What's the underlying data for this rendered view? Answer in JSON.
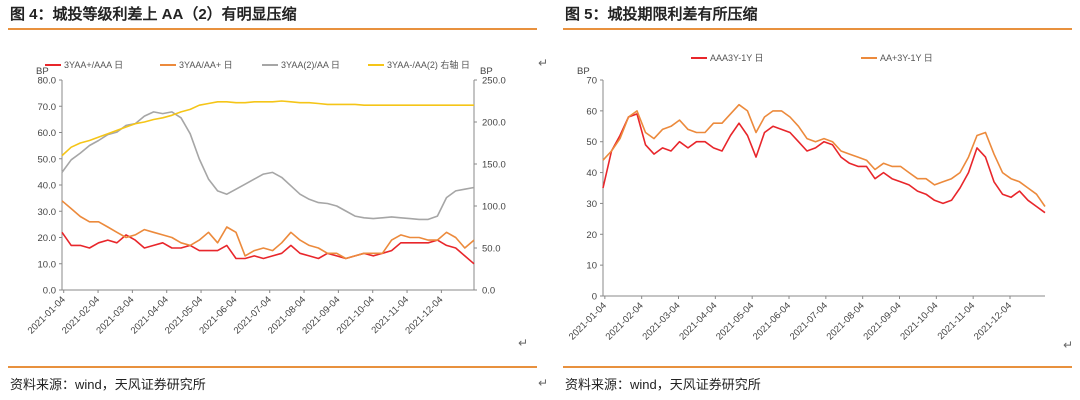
{
  "figures": [
    {
      "title": "图 4：城投等级利差上 AA（2）有明显压缩",
      "source": "资料来源：wind，天风证券研究所"
    },
    {
      "title": "图 5：城投期限利差有所压缩",
      "source": "资料来源：wind，天风证券研究所"
    }
  ],
  "chart_data": [
    {
      "type": "line",
      "ylabel": "BP",
      "y2label": "BP",
      "ylim": [
        0,
        80
      ],
      "yticks": [
        "0.0",
        "10.0",
        "20.0",
        "30.0",
        "40.0",
        "50.0",
        "60.0",
        "70.0",
        "80.0"
      ],
      "y2lim": [
        0,
        250
      ],
      "y2ticks": [
        "0.0",
        "50.0",
        "100.0",
        "150.0",
        "200.0",
        "250.0"
      ],
      "xticks": [
        "2021-01-04",
        "2021-02-04",
        "2021-03-04",
        "2021-04-04",
        "2021-05-04",
        "2021-06-04",
        "2021-07-04",
        "2021-08-04",
        "2021-09-04",
        "2021-10-04",
        "2021-11-04",
        "2021-12-04"
      ],
      "grid": false,
      "legend_position": "top",
      "series": [
        {
          "name": "3YAA+/AAA 日",
          "color": "#e8262b",
          "axis": "left",
          "values": [
            22,
            17,
            17,
            16,
            18,
            19,
            18,
            21,
            19,
            16,
            17,
            18,
            16,
            16,
            17,
            15,
            15,
            15,
            17,
            12,
            12,
            13,
            12,
            13,
            14,
            17,
            14,
            13,
            12,
            14,
            13,
            12,
            13,
            14,
            13,
            14,
            15,
            18,
            18,
            18,
            18,
            19,
            17,
            16,
            13,
            10
          ]
        },
        {
          "name": "3YAA/AA+ 日",
          "color": "#ec8a3c",
          "axis": "left",
          "values": [
            34,
            31,
            28,
            26,
            26,
            24,
            22,
            20,
            21,
            23,
            22,
            21,
            20,
            18,
            17,
            19,
            22,
            18,
            24,
            22,
            13,
            15,
            16,
            15,
            18,
            22,
            19,
            17,
            16,
            14,
            14,
            12,
            13,
            14,
            14,
            14,
            19,
            21,
            20,
            20,
            19,
            19,
            22,
            20,
            16,
            19
          ]
        },
        {
          "name": "3YAA(2)/AA 日",
          "color": "#a6a6a6",
          "axis": "right",
          "values": [
            140,
            155,
            163,
            172,
            178,
            185,
            188,
            196,
            198,
            207,
            212,
            210,
            212,
            205,
            186,
            156,
            132,
            118,
            114,
            120,
            126,
            132,
            138,
            140,
            134,
            124,
            114,
            108,
            104,
            103,
            100,
            94,
            88,
            86,
            85,
            86,
            87,
            86,
            85,
            84,
            84,
            88,
            110,
            118,
            120,
            122
          ]
        },
        {
          "name": "3YAA-/AA(2) 右轴 日",
          "color": "#f5c518",
          "axis": "right",
          "values": [
            160,
            170,
            175,
            178,
            182,
            186,
            190,
            194,
            198,
            200,
            203,
            205,
            208,
            212,
            215,
            220,
            222,
            224,
            224,
            223,
            223,
            224,
            224,
            224,
            225,
            224,
            223,
            223,
            222,
            221,
            221,
            221,
            221,
            220,
            220,
            220,
            220,
            220,
            220,
            220,
            220,
            220,
            220,
            220,
            220,
            220
          ]
        }
      ]
    },
    {
      "type": "line",
      "ylabel": "BP",
      "ylim": [
        0,
        70
      ],
      "yticks": [
        "0",
        "10",
        "20",
        "30",
        "40",
        "50",
        "60",
        "70"
      ],
      "xticks": [
        "2021-01-04",
        "2021-02-04",
        "2021-03-04",
        "2021-04-04",
        "2021-05-04",
        "2021-06-04",
        "2021-07-04",
        "2021-08-04",
        "2021-09-04",
        "2021-10-04",
        "2021-11-04",
        "2021-12-04"
      ],
      "grid": false,
      "legend_position": "top",
      "series": [
        {
          "name": "AAA3Y-1Y 日",
          "color": "#e8262b",
          "values": [
            35,
            47,
            52,
            58,
            59,
            49,
            46,
            48,
            47,
            50,
            48,
            50,
            50,
            48,
            47,
            52,
            56,
            52,
            45,
            53,
            55,
            54,
            53,
            50,
            47,
            48,
            50,
            49,
            45,
            43,
            42,
            42,
            38,
            40,
            38,
            37,
            36,
            34,
            33,
            31,
            30,
            31,
            35,
            40,
            48,
            45,
            37,
            33,
            32,
            34,
            31,
            29,
            27
          ]
        },
        {
          "name": "AA+3Y-1Y 日",
          "color": "#ec8a3c",
          "values": [
            44,
            47,
            51,
            58,
            60,
            53,
            51,
            54,
            55,
            57,
            54,
            53,
            53,
            56,
            56,
            59,
            62,
            60,
            53,
            58,
            60,
            60,
            58,
            55,
            51,
            50,
            51,
            50,
            47,
            46,
            45,
            44,
            41,
            43,
            42,
            42,
            40,
            38,
            38,
            36,
            37,
            38,
            40,
            45,
            52,
            53,
            46,
            40,
            38,
            37,
            35,
            33,
            29
          ]
        }
      ]
    }
  ]
}
